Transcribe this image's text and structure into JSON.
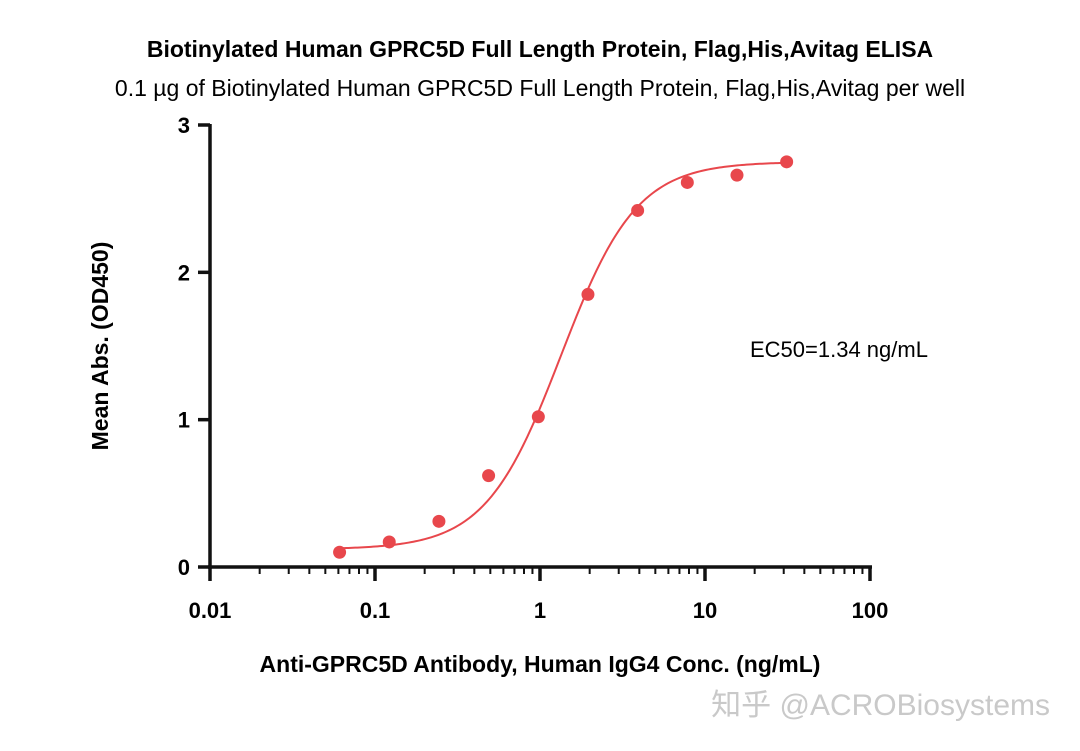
{
  "chart_data": {
    "type": "scatter",
    "title": "Biotinylated Human GPRC5D Full Length Protein, Flag,His,Avitag ELISA",
    "subtitle": "0.1 µg of Biotinylated Human GPRC5D Full Length Protein, Flag,His,Avitag per well",
    "xlabel": "Anti-GPRC5D Antibody, Human IgG4 Conc. (ng/mL)",
    "ylabel": "Mean Abs. (OD450)",
    "x_scale": "log",
    "xlim": [
      0.01,
      100
    ],
    "ylim": [
      0,
      3
    ],
    "x_ticks": [
      "0.01",
      "0.1",
      "1",
      "10",
      "100"
    ],
    "x_tick_values": [
      0.01,
      0.1,
      1,
      10,
      100
    ],
    "y_ticks": [
      "0",
      "1",
      "2",
      "3"
    ],
    "y_tick_values": [
      0,
      1,
      2,
      3
    ],
    "grid": false,
    "series": [
      {
        "color": "#e8474c",
        "x": [
          0.061,
          0.122,
          0.244,
          0.488,
          0.977,
          1.953,
          3.906,
          7.813,
          15.625,
          31.25
        ],
        "y": [
          0.1,
          0.17,
          0.31,
          0.62,
          1.02,
          1.85,
          2.42,
          2.61,
          2.66,
          2.75
        ],
        "fit": {
          "model": "4PL",
          "bottom": 0.12,
          "top": 2.75,
          "ec50": 1.34,
          "hill": 1.9
        }
      }
    ],
    "annotations": [
      {
        "text": "EC50=1.34 ng/mL"
      }
    ]
  },
  "watermark": {
    "text": "知乎 @ACROBiosystems"
  }
}
